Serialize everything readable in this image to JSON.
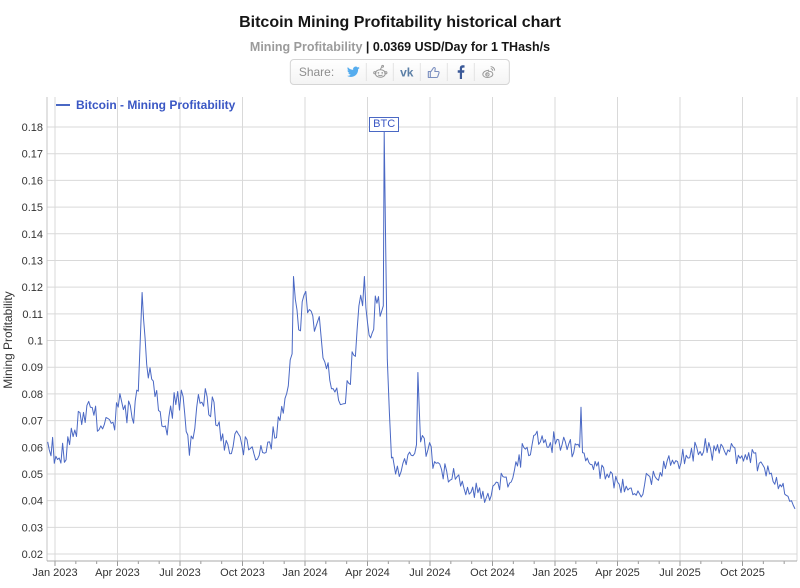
{
  "page": {
    "title": "Bitcoin Mining Profitability historical chart"
  },
  "subtitle": {
    "metric": "Mining Profitability",
    "separator": "|",
    "value_text": "0.0369 USD/Day for 1 THash/s"
  },
  "share": {
    "label": "Share:",
    "icons": [
      "twitter-icon",
      "reddit-icon",
      "vk-icon",
      "like-icon",
      "facebook-icon",
      "weibo-icon"
    ]
  },
  "chart_data": {
    "type": "line",
    "title": "Bitcoin Mining Profitability historical chart",
    "xlabel": "",
    "ylabel": "Mining Profitability",
    "unit": "USD/Day for 1 THash/s",
    "current_value": 0.0369,
    "ylim": [
      0.02,
      0.18
    ],
    "grid": "on",
    "legend_position": "top-left",
    "line_color": "#4a68c4",
    "legend_text_color": "#3a57c4",
    "grid_color": "#d9d9d9",
    "axis_color": "#a8a8a8",
    "tick_label_color": "#333333",
    "y_tick_labels": [
      "0.02",
      "0.03",
      "0.04",
      "0.05",
      "0.06",
      "0.07",
      "0.08",
      "0.09",
      "0.1",
      "0.11",
      "0.12",
      "0.13",
      "0.14",
      "0.15",
      "0.16",
      "0.17",
      "0.18"
    ],
    "x_ticks": [
      {
        "m": 0,
        "label": "Jan 2023"
      },
      {
        "m": 3,
        "label": "Apr 2023"
      },
      {
        "m": 6,
        "label": "Jul 2023"
      },
      {
        "m": 9,
        "label": "Oct 2023"
      },
      {
        "m": 12,
        "label": "Jan 2024"
      },
      {
        "m": 15,
        "label": "Apr 2024"
      },
      {
        "m": 18,
        "label": "Jul 2024"
      },
      {
        "m": 21,
        "label": "Oct 2024"
      },
      {
        "m": 24,
        "label": "Jan 2025"
      },
      {
        "m": 27,
        "label": "Apr 2025"
      },
      {
        "m": 30,
        "label": "Jul 2025"
      },
      {
        "m": 33,
        "label": "Oct 2025"
      }
    ],
    "annotation": {
      "label": "BTC",
      "t_months": 15.8,
      "value": 0.178
    },
    "noise_seed": 9,
    "sample_step_months": 0.08,
    "anchors_format": "[months_since_jan_2023, value_usd_per_day_per_thash, local_noise_amplitude]",
    "series": [
      {
        "name": "Bitcoin - Mining Profitability",
        "anchors": [
          [
            -0.35,
            0.062,
            0.004
          ],
          [
            0.2,
            0.056,
            0.005
          ],
          [
            0.7,
            0.061,
            0.005
          ],
          [
            1.2,
            0.073,
            0.006
          ],
          [
            1.7,
            0.075,
            0.005
          ],
          [
            2.2,
            0.068,
            0.005
          ],
          [
            2.7,
            0.069,
            0.006
          ],
          [
            3.2,
            0.077,
            0.005
          ],
          [
            3.7,
            0.071,
            0.006
          ],
          [
            4.0,
            0.081,
            0.004
          ],
          [
            4.18,
            0.118,
            0.001
          ],
          [
            4.4,
            0.091,
            0.003
          ],
          [
            4.8,
            0.079,
            0.005
          ],
          [
            5.3,
            0.068,
            0.006
          ],
          [
            5.8,
            0.076,
            0.006
          ],
          [
            6.15,
            0.079,
            0.004
          ],
          [
            6.45,
            0.057,
            0.003
          ],
          [
            6.8,
            0.075,
            0.006
          ],
          [
            7.3,
            0.079,
            0.005
          ],
          [
            7.8,
            0.068,
            0.006
          ],
          [
            8.3,
            0.061,
            0.005
          ],
          [
            8.8,
            0.065,
            0.005
          ],
          [
            9.3,
            0.059,
            0.005
          ],
          [
            9.8,
            0.057,
            0.004
          ],
          [
            10.3,
            0.062,
            0.004
          ],
          [
            10.8,
            0.07,
            0.004
          ],
          [
            11.2,
            0.083,
            0.005
          ],
          [
            11.38,
            0.095,
            0.004
          ],
          [
            11.45,
            0.124,
            0.002
          ],
          [
            11.7,
            0.104,
            0.006
          ],
          [
            11.95,
            0.117,
            0.005
          ],
          [
            12.3,
            0.111,
            0.006
          ],
          [
            12.6,
            0.107,
            0.006
          ],
          [
            12.95,
            0.092,
            0.006
          ],
          [
            13.35,
            0.082,
            0.005
          ],
          [
            13.7,
            0.076,
            0.004
          ],
          [
            14.1,
            0.084,
            0.006
          ],
          [
            14.5,
            0.104,
            0.007
          ],
          [
            14.85,
            0.124,
            0.006
          ],
          [
            15.15,
            0.101,
            0.006
          ],
          [
            15.45,
            0.114,
            0.006
          ],
          [
            15.68,
            0.111,
            0.003
          ],
          [
            15.76,
            0.113,
            0.002
          ],
          [
            15.8,
            0.178,
            0.0
          ],
          [
            15.95,
            0.093,
            0.003
          ],
          [
            16.15,
            0.056,
            0.002
          ],
          [
            16.35,
            0.05,
            0.003
          ],
          [
            16.7,
            0.054,
            0.004
          ],
          [
            17.1,
            0.057,
            0.004
          ],
          [
            17.35,
            0.061,
            0.002
          ],
          [
            17.42,
            0.088,
            0.0
          ],
          [
            17.55,
            0.062,
            0.003
          ],
          [
            17.9,
            0.059,
            0.005
          ],
          [
            18.3,
            0.054,
            0.004
          ],
          [
            18.8,
            0.051,
            0.004
          ],
          [
            19.3,
            0.049,
            0.004
          ],
          [
            19.8,
            0.045,
            0.004
          ],
          [
            20.3,
            0.043,
            0.004
          ],
          [
            20.7,
            0.041,
            0.003
          ],
          [
            21.1,
            0.046,
            0.004
          ],
          [
            21.5,
            0.049,
            0.004
          ],
          [
            21.9,
            0.047,
            0.004
          ],
          [
            22.2,
            0.053,
            0.004
          ],
          [
            22.5,
            0.06,
            0.004
          ],
          [
            22.9,
            0.061,
            0.004
          ],
          [
            23.3,
            0.062,
            0.005
          ],
          [
            23.7,
            0.06,
            0.005
          ],
          [
            24.1,
            0.063,
            0.005
          ],
          [
            24.5,
            0.062,
            0.005
          ],
          [
            24.9,
            0.058,
            0.004
          ],
          [
            25.18,
            0.06,
            0.003
          ],
          [
            25.25,
            0.075,
            0.0
          ],
          [
            25.32,
            0.058,
            0.003
          ],
          [
            25.55,
            0.056,
            0.004
          ],
          [
            26.0,
            0.053,
            0.004
          ],
          [
            26.5,
            0.05,
            0.004
          ],
          [
            27.0,
            0.047,
            0.004
          ],
          [
            27.5,
            0.044,
            0.003
          ],
          [
            27.9,
            0.042,
            0.003
          ],
          [
            28.3,
            0.046,
            0.004
          ],
          [
            28.8,
            0.049,
            0.004
          ],
          [
            29.3,
            0.052,
            0.004
          ],
          [
            29.8,
            0.055,
            0.004
          ],
          [
            30.3,
            0.057,
            0.004
          ],
          [
            30.8,
            0.06,
            0.005
          ],
          [
            31.3,
            0.058,
            0.005
          ],
          [
            31.8,
            0.061,
            0.004
          ],
          [
            32.3,
            0.059,
            0.004
          ],
          [
            32.8,
            0.057,
            0.004
          ],
          [
            33.3,
            0.058,
            0.004
          ],
          [
            33.8,
            0.054,
            0.004
          ],
          [
            34.3,
            0.05,
            0.004
          ],
          [
            34.8,
            0.046,
            0.003
          ],
          [
            35.1,
            0.042,
            0.003
          ],
          [
            35.35,
            0.04,
            0.002
          ],
          [
            35.52,
            0.0369,
            0.0
          ]
        ]
      }
    ]
  }
}
